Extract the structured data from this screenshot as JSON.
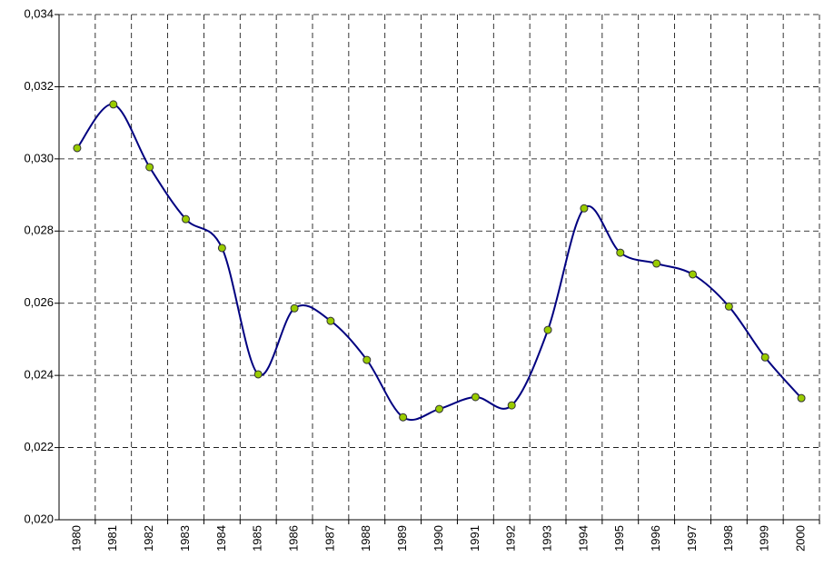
{
  "chart_data": {
    "type": "line",
    "categories": [
      "1980",
      "1981",
      "1982",
      "1983",
      "1984",
      "1985",
      "1986",
      "1987",
      "1988",
      "1989",
      "1990",
      "1991",
      "1992",
      "1993",
      "1994",
      "1995",
      "1996",
      "1997",
      "1998",
      "1999",
      "2000"
    ],
    "series": [
      {
        "color": "#000080",
        "marker_color": "#99cc00",
        "values": [
          0.0303,
          0.03151,
          0.02977,
          0.02833,
          0.02753,
          0.02403,
          0.02586,
          0.02551,
          0.02443,
          0.02284,
          0.02307,
          0.0234,
          0.02317,
          0.02526,
          0.02863,
          0.0274,
          0.0271,
          0.0268,
          0.02591,
          0.0245,
          0.02337
        ]
      }
    ],
    "ylim": [
      0.02,
      0.034
    ],
    "yticks": [
      {
        "value": 0.02,
        "label": "0,020"
      },
      {
        "value": 0.022,
        "label": "0,022"
      },
      {
        "value": 0.024,
        "label": "0,024"
      },
      {
        "value": 0.026,
        "label": "0,026"
      },
      {
        "value": 0.028,
        "label": "0,028"
      },
      {
        "value": 0.03,
        "label": "0,030"
      },
      {
        "value": 0.032,
        "label": "0,032"
      },
      {
        "value": 0.034,
        "label": "0,034"
      }
    ],
    "grid": true,
    "smooth": true
  }
}
